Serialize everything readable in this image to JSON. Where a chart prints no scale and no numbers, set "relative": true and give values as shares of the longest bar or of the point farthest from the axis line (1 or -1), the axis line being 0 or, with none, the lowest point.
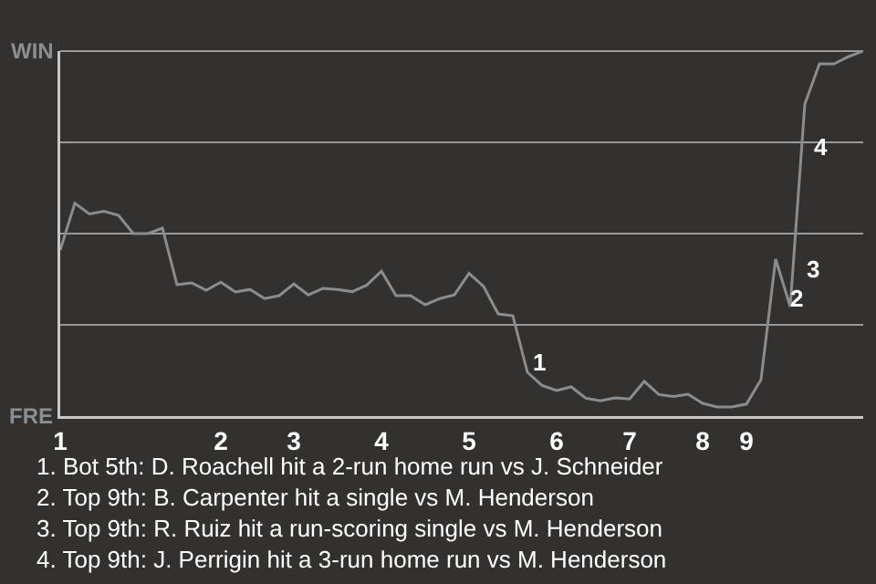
{
  "chart_data": {
    "type": "line",
    "relative": true,
    "categories": [
      "1",
      null,
      null,
      null,
      null,
      null,
      null,
      null,
      null,
      null,
      null,
      "2",
      null,
      null,
      null,
      null,
      "3",
      null,
      null,
      null,
      null,
      null,
      "4",
      null,
      null,
      null,
      null,
      null,
      "5",
      null,
      null,
      null,
      null,
      null,
      "6",
      null,
      null,
      null,
      null,
      "7",
      null,
      null,
      null,
      null,
      "8",
      null,
      null,
      "9",
      null,
      null,
      null,
      null,
      null,
      null,
      null,
      null
    ],
    "grid": "y",
    "marker": "none",
    "line_style": "solid",
    "series": [
      {
        "color": "#8a8c8e",
        "values": [
          0.455,
          0.583,
          0.554,
          0.561,
          0.55,
          0.5,
          0.5,
          0.515,
          0.36,
          0.365,
          0.345,
          0.367,
          0.34,
          0.347,
          0.322,
          0.33,
          0.362,
          0.332,
          0.35,
          0.347,
          0.341,
          0.359,
          0.397,
          0.33,
          0.33,
          0.305,
          0.322,
          0.332,
          0.391,
          0.355,
          0.28,
          0.275,
          0.12,
          0.084,
          0.07,
          0.08,
          0.049,
          0.042,
          0.05,
          0.047,
          0.095,
          0.059,
          0.054,
          0.06,
          0.035,
          0.025,
          0.025,
          0.033,
          0.1,
          0.43,
          0.3,
          0.855,
          0.965,
          0.965,
          0.985,
          1.0
        ]
      }
    ],
    "annotations": [
      "WIN",
      "FRE",
      "1",
      "2",
      "3",
      "4",
      "1. Bot 5th: D. Roachell hit a 2-run home run vs J. Schneider",
      "2. Top 9th: B. Carpenter hit a single vs M. Henderson",
      "3. Top 9th: R. Ruiz hit a run-scoring single vs M. Henderson",
      "4. Top 9th: J. Perrigin hit a 3-run home run vs M. Henderson"
    ]
  }
}
